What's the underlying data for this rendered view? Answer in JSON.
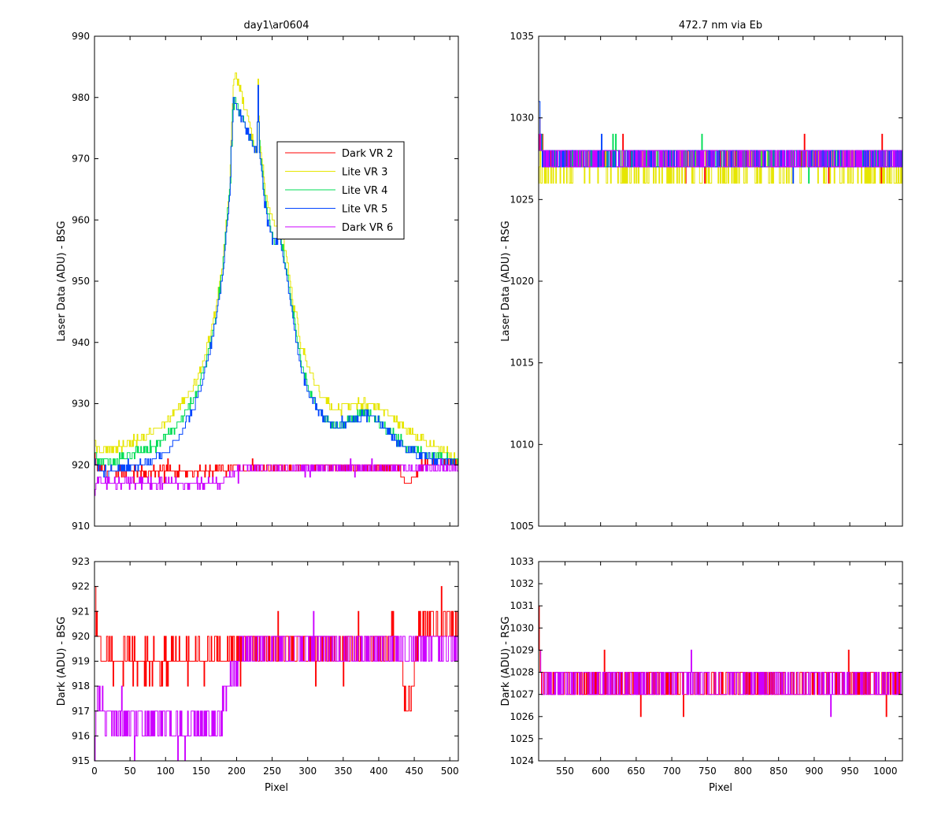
{
  "chart_data": [
    {
      "id": "top-left",
      "type": "line",
      "title": "day1\\ar0604",
      "xlabel": "",
      "ylabel": "Laser Data (ADU) - BSG",
      "xlim": [
        0,
        512
      ],
      "ylim": [
        910,
        990
      ],
      "xticks": [
        0,
        50,
        100,
        150,
        200,
        250,
        300,
        350,
        400,
        450,
        500
      ],
      "yticks": [
        910,
        920,
        930,
        940,
        950,
        960,
        970,
        980,
        990
      ],
      "show_xtick_labels": false,
      "legend": {
        "placement": "top-right-inside"
      },
      "series": [
        {
          "name": "Dark VR 2",
          "color": "#ff0000",
          "x": [
            0,
            2,
            10,
            50,
            100,
            150,
            200,
            250,
            300,
            350,
            400,
            420,
            430,
            440,
            450,
            460,
            480,
            500,
            512
          ],
          "y": [
            922,
            920,
            919,
            919,
            919,
            919,
            919.5,
            919.5,
            919.5,
            919.5,
            919.5,
            920,
            919,
            917,
            918,
            920,
            920.5,
            920.5,
            920.5
          ]
        },
        {
          "name": "Lite VR 3",
          "color": "#e6e600",
          "x": [
            0,
            5,
            20,
            50,
            80,
            100,
            120,
            140,
            150,
            160,
            170,
            180,
            190,
            195,
            198,
            228,
            230,
            232,
            240,
            250,
            255,
            260,
            270,
            280,
            290,
            300,
            320,
            340,
            360,
            380,
            400,
            420,
            440,
            460,
            480,
            500,
            512
          ],
          "y": [
            924,
            922.5,
            922.5,
            923.5,
            925.5,
            927,
            929.5,
            933,
            936,
            940,
            945,
            953,
            966,
            982,
            984,
            971,
            982,
            973,
            965,
            960,
            959,
            960,
            954,
            946,
            940,
            936,
            931,
            929,
            930,
            930,
            929.5,
            927.5,
            925.5,
            924,
            923,
            922,
            920
          ]
        },
        {
          "name": "Lite VR 4",
          "color": "#00dd55",
          "x": [
            0,
            5,
            20,
            50,
            80,
            100,
            120,
            140,
            150,
            160,
            170,
            180,
            190,
            195,
            228,
            230,
            232,
            240,
            250,
            255,
            260,
            270,
            280,
            290,
            300,
            320,
            340,
            360,
            380,
            400,
            420,
            440,
            460,
            480,
            500,
            512
          ],
          "y": [
            922,
            920.5,
            920.5,
            921.5,
            923,
            924.5,
            927,
            931,
            934,
            938.5,
            944,
            952,
            965,
            980,
            971,
            980,
            972,
            963,
            957,
            956,
            958,
            952,
            944,
            937,
            933,
            928,
            926.5,
            927.5,
            928.5,
            927,
            925,
            923,
            922,
            921.5,
            921,
            920
          ]
        },
        {
          "name": "Lite VR 5",
          "color": "#0044ff",
          "x": [
            0,
            5,
            20,
            50,
            80,
            100,
            120,
            140,
            150,
            160,
            170,
            180,
            190,
            195,
            228,
            230,
            232,
            240,
            250,
            255,
            260,
            270,
            280,
            290,
            300,
            320,
            340,
            360,
            380,
            400,
            420,
            440,
            460,
            480,
            500,
            512
          ],
          "y": [
            921,
            919,
            919,
            919.5,
            920.5,
            922,
            925,
            929.5,
            933,
            937.5,
            943,
            951,
            964,
            980,
            971,
            981,
            971,
            962,
            957,
            956,
            957,
            951,
            943,
            936,
            932,
            928,
            926,
            927,
            928.5,
            927,
            924.5,
            922.5,
            921.5,
            921,
            920.5,
            920
          ]
        },
        {
          "name": "Dark VR 6",
          "color": "#cc00ff",
          "x": [
            0,
            3,
            10,
            50,
            100,
            150,
            178,
            185,
            200,
            210,
            250,
            300,
            350,
            400,
            450,
            480,
            500,
            512
          ],
          "y": [
            915,
            918,
            917,
            917,
            917,
            917,
            917,
            918,
            919,
            919.5,
            919.5,
            919.5,
            919.5,
            919.5,
            919.5,
            919.5,
            919.5,
            919.5
          ]
        }
      ]
    },
    {
      "id": "top-right",
      "type": "line",
      "title": "472.7 nm via Eb",
      "xlabel": "",
      "ylabel": "Laser Data (ADU) - RSG",
      "xlim": [
        513,
        1024
      ],
      "ylim": [
        1005,
        1035
      ],
      "xticks": [
        550,
        600,
        650,
        700,
        750,
        800,
        850,
        900,
        950,
        1000
      ],
      "yticks": [
        1005,
        1010,
        1015,
        1020,
        1025,
        1030,
        1035
      ],
      "show_xtick_labels": false,
      "series": [
        {
          "name": "",
          "color": "#ff0000",
          "base": 1027.5,
          "spread": 0.6,
          "x": [
            513,
            515,
            520,
            580,
            640,
            700,
            760,
            820,
            880,
            940,
            1000,
            1024
          ],
          "y": [
            1031,
            1028,
            1027.5,
            1027.5,
            1027.5,
            1027.5,
            1027.5,
            1027.5,
            1027.5,
            1027.5,
            1027.5,
            1027.5
          ]
        },
        {
          "name": "",
          "color": "#e6e600",
          "base": 1027,
          "spread": 1.0,
          "x": [
            513,
            520,
            600,
            700,
            800,
            900,
            1000,
            1024
          ],
          "y": [
            1027,
            1027,
            1027,
            1027,
            1027,
            1027,
            1027,
            1027
          ]
        },
        {
          "name": "",
          "color": "#00dd55",
          "base": 1027.5,
          "spread": 0.8,
          "x": [
            513,
            520,
            600,
            700,
            800,
            900,
            1000,
            1024
          ],
          "y": [
            1029,
            1027.5,
            1027.5,
            1027.5,
            1027.5,
            1027.5,
            1027.5,
            1027.5
          ]
        },
        {
          "name": "",
          "color": "#0044ff",
          "base": 1027.5,
          "spread": 0.8,
          "x": [
            513,
            515,
            520,
            600,
            700,
            800,
            900,
            1000,
            1024
          ],
          "y": [
            1031.5,
            1029,
            1027.5,
            1027.5,
            1027.5,
            1027.5,
            1027.5,
            1027.5,
            1027.5
          ]
        },
        {
          "name": "",
          "color": "#cc00ff",
          "base": 1027.5,
          "spread": 0.8,
          "x": [
            513,
            520,
            600,
            700,
            800,
            900,
            1000,
            1024
          ],
          "y": [
            1029,
            1027.5,
            1027.5,
            1027.5,
            1027.5,
            1027.5,
            1027.5,
            1027.5
          ]
        }
      ]
    },
    {
      "id": "bottom-left",
      "type": "line",
      "title": "",
      "xlabel": "Pixel",
      "ylabel": "Dark (ADU) - BSG",
      "xlim": [
        0,
        512
      ],
      "ylim": [
        915,
        923
      ],
      "xticks": [
        0,
        50,
        100,
        150,
        200,
        250,
        300,
        350,
        400,
        450,
        500
      ],
      "yticks": [
        915,
        916,
        917,
        918,
        919,
        920,
        921,
        922,
        923
      ],
      "show_xtick_labels": true,
      "series": [
        {
          "name": "",
          "color": "#ff0000",
          "x": [
            0,
            2,
            5,
            10,
            50,
            100,
            150,
            200,
            250,
            300,
            350,
            400,
            420,
            430,
            440,
            450,
            460,
            480,
            500,
            512
          ],
          "y": [
            922,
            921,
            920,
            919,
            919,
            919,
            919,
            919.5,
            919.5,
            919.5,
            919.5,
            919.5,
            920,
            919,
            917,
            919,
            920.5,
            920.5,
            920.5,
            920.5
          ]
        },
        {
          "name": "",
          "color": "#cc00ff",
          "x": [
            0,
            3,
            10,
            50,
            100,
            150,
            178,
            185,
            200,
            210,
            250,
            300,
            350,
            400,
            450,
            480,
            500,
            512
          ],
          "y": [
            915,
            918,
            917,
            916.5,
            916.5,
            916.5,
            916.5,
            918,
            919,
            919.5,
            919.5,
            919.5,
            919.5,
            919.5,
            919.5,
            919.5,
            919.5,
            919.5
          ]
        }
      ]
    },
    {
      "id": "bottom-right",
      "type": "line",
      "title": "",
      "xlabel": "Pixel",
      "ylabel": "Dark (ADU) - RSG",
      "xlim": [
        513,
        1024
      ],
      "ylim": [
        1024,
        1033
      ],
      "xticks": [
        550,
        600,
        650,
        700,
        750,
        800,
        850,
        900,
        950,
        1000
      ],
      "yticks": [
        1024,
        1025,
        1026,
        1027,
        1028,
        1029,
        1030,
        1031,
        1032,
        1033
      ],
      "show_xtick_labels": true,
      "series": [
        {
          "name": "",
          "color": "#ff0000",
          "x": [
            513,
            515,
            520,
            580,
            640,
            700,
            760,
            820,
            880,
            940,
            1000,
            1024
          ],
          "y": [
            1031,
            1028,
            1027.5,
            1027.5,
            1027.5,
            1027.5,
            1027.5,
            1027.5,
            1027.5,
            1027.5,
            1027.5,
            1027.5
          ]
        },
        {
          "name": "",
          "color": "#cc00ff",
          "x": [
            513,
            520,
            600,
            700,
            800,
            900,
            1000,
            1024
          ],
          "y": [
            1029,
            1027.5,
            1027.5,
            1027.5,
            1027.5,
            1027.5,
            1027.5,
            1027.5
          ]
        }
      ]
    }
  ]
}
